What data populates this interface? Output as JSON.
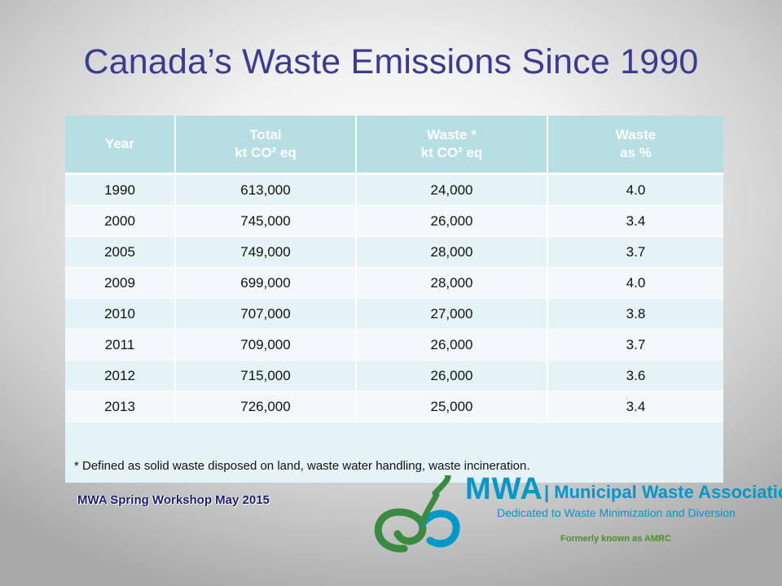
{
  "title": "Canada’s Waste Emissions Since 1990",
  "table": {
    "headers": [
      {
        "line1": "Year",
        "line2": ""
      },
      {
        "line1": "Total",
        "line2": "kt CO² eq"
      },
      {
        "line1": "Waste *",
        "line2": "kt CO² eq"
      },
      {
        "line1": "Waste",
        "line2": "as %"
      }
    ],
    "rows": [
      [
        "1990",
        "613,000",
        "24,000",
        "4.0"
      ],
      [
        "2000",
        "745,000",
        "26,000",
        "3.4"
      ],
      [
        "2005",
        "749,000",
        "28,000",
        "3.7"
      ],
      [
        "2009",
        "699,000",
        "28,000",
        "4.0"
      ],
      [
        "2010",
        "707,000",
        "27,000",
        "3.8"
      ],
      [
        "2011",
        "709,000",
        "26,000",
        "3.7"
      ],
      [
        "2012",
        "715,000",
        "26,000",
        "3.6"
      ],
      [
        "2013",
        "726,000",
        "25,000",
        "3.4"
      ]
    ],
    "footnote": "* Defined as solid waste disposed on land, waste water handling, waste incineration."
  },
  "footer": "MWA Spring Workshop May 2015",
  "logo": {
    "abbr": "MWA",
    "name": "| Municipal Waste Association",
    "tagline": "Dedicated to Waste Minimization and Diversion",
    "formerly": "Formerly known as AMRC"
  },
  "colors": {
    "title": "#3b3b8f",
    "header_bg": "#b7dfe3",
    "logo_blue": "#0097c9",
    "logo_green": "#4a8f2a"
  }
}
